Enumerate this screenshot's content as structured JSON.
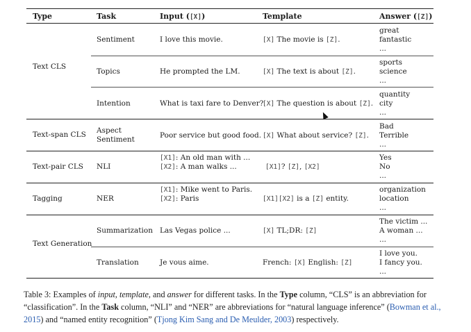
{
  "table": {
    "headers": {
      "type": "Type",
      "task": "Task",
      "input": "Input ([X])",
      "template": "Template",
      "answer": "Answer ([Z])"
    },
    "groups": [
      {
        "type": "Text CLS",
        "tasks": [
          {
            "task": "Sentiment",
            "input": [
              "I love this movie."
            ],
            "template": "[X] The movie is [Z].",
            "answer": [
              "great",
              "fantastic",
              "..."
            ]
          },
          {
            "task": "Topics",
            "input": [
              "He prompted the LM."
            ],
            "template": "[X] The text is about [Z].",
            "answer": [
              "sports",
              "science",
              "..."
            ]
          },
          {
            "task": "Intention",
            "input": [
              "What is taxi fare to Denver?"
            ],
            "template": "[X] The question is about [Z].",
            "answer": [
              "quantity",
              "city",
              "..."
            ]
          }
        ]
      },
      {
        "type": "Text-span CLS",
        "tasks": [
          {
            "task": "Aspect Sentiment",
            "input": [
              "Poor service but good food."
            ],
            "template": "[X] What about service? [Z].",
            "answer": [
              "Bad",
              "Terrible",
              "..."
            ]
          }
        ]
      },
      {
        "type": "Text-pair CLS",
        "tasks": [
          {
            "task": "NLI",
            "input": [
              "[X1]: An old man with ...",
              "[X2]: A man walks ..."
            ],
            "template": "[X1]? [Z], [X2]",
            "answer": [
              "Yes",
              "No",
              "..."
            ]
          }
        ]
      },
      {
        "type": "Tagging",
        "tasks": [
          {
            "task": "NER",
            "input": [
              "[X1]: Mike went to Paris.",
              "[X2]: Paris"
            ],
            "template": "[X1][X2] is a [Z] entity.",
            "answer": [
              "organization",
              "location",
              "..."
            ]
          }
        ]
      },
      {
        "type": "Text Generation",
        "tasks": [
          {
            "task": "Summarization",
            "input": [
              "Las Vegas police ..."
            ],
            "template": "[X] TL;DR: [Z]",
            "answer": [
              "The victim ...",
              "A woman ...",
              "..."
            ]
          },
          {
            "task": "Translation",
            "input": [
              "Je vous aime."
            ],
            "template": "French: [X] English: [Z]",
            "answer": [
              "I love you.",
              "I fancy you.",
              "..."
            ]
          }
        ]
      }
    ]
  },
  "caption": {
    "label": "Table 3: Examples of",
    "w_input": "input",
    "sep1": ",",
    "w_template": "template",
    "and": ", and",
    "w_answer": "answer",
    "t1": "for different tasks. In the",
    "w_type": "Type",
    "t2": "column, “CLS” is an abbreviation for “classification”. In the",
    "w_task": "Task",
    "t3": "column, “NLI” and “NER” are abbreviations for “natural language inference” (",
    "cite1": "Bowman et al., 2015",
    "t4": ") and “named entity recognition” (",
    "cite2": "Tjong Kim Sang and De Meulder, 2003",
    "t5": ") respectively."
  }
}
